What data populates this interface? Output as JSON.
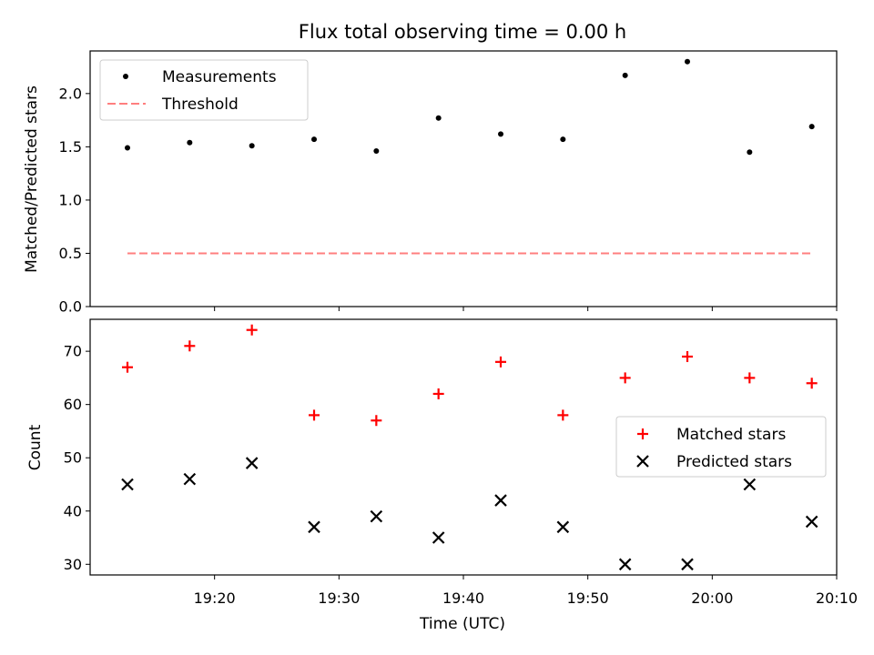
{
  "chart_data": [
    {
      "type": "scatter",
      "title": "Flux total observing time = 0.00 h",
      "xlabel": "",
      "ylabel": "Matched/Predicted stars",
      "ylim": [
        0,
        2.4
      ],
      "yticks": [
        "0.0",
        "0.5",
        "1.0",
        "1.5",
        "2.0"
      ],
      "x": [
        "19:13",
        "19:18",
        "19:23",
        "19:28",
        "19:33",
        "19:38",
        "19:43",
        "19:48",
        "19:53",
        "19:58",
        "20:03",
        "20:08"
      ],
      "series": [
        {
          "name": "Measurements",
          "style": "dot",
          "color": "#000000",
          "values": [
            1.49,
            1.54,
            1.51,
            1.57,
            1.46,
            1.77,
            1.62,
            1.57,
            2.17,
            2.3,
            1.45,
            1.69
          ]
        },
        {
          "name": "Threshold",
          "style": "dashed-line",
          "color": "#ff7f7f",
          "values": [
            0.5,
            0.5,
            0.5,
            0.5,
            0.5,
            0.5,
            0.5,
            0.5,
            0.5,
            0.5,
            0.5,
            0.5
          ]
        }
      ],
      "legend": "top-left",
      "grid": false
    },
    {
      "type": "scatter",
      "title": "",
      "xlabel": "Time (UTC)",
      "ylabel": "Count",
      "ylim": [
        28,
        76
      ],
      "xlim": [
        "19:10",
        "20:10"
      ],
      "xticks": [
        "19:20",
        "19:30",
        "19:40",
        "19:50",
        "20:00",
        "20:10"
      ],
      "yticks": [
        "30",
        "40",
        "50",
        "60",
        "70"
      ],
      "x": [
        "19:13",
        "19:18",
        "19:23",
        "19:28",
        "19:33",
        "19:38",
        "19:43",
        "19:48",
        "19:53",
        "19:58",
        "20:03",
        "20:08"
      ],
      "series": [
        {
          "name": "Matched stars",
          "marker": "plus",
          "color": "#ff0000",
          "values": [
            67,
            71,
            74,
            58,
            57,
            62,
            68,
            58,
            65,
            69,
            65,
            64
          ]
        },
        {
          "name": "Predicted stars",
          "marker": "x",
          "color": "#000000",
          "values": [
            45,
            46,
            49,
            37,
            39,
            35,
            42,
            37,
            30,
            30,
            45,
            38
          ]
        }
      ],
      "legend": "center-right",
      "grid": false
    }
  ]
}
